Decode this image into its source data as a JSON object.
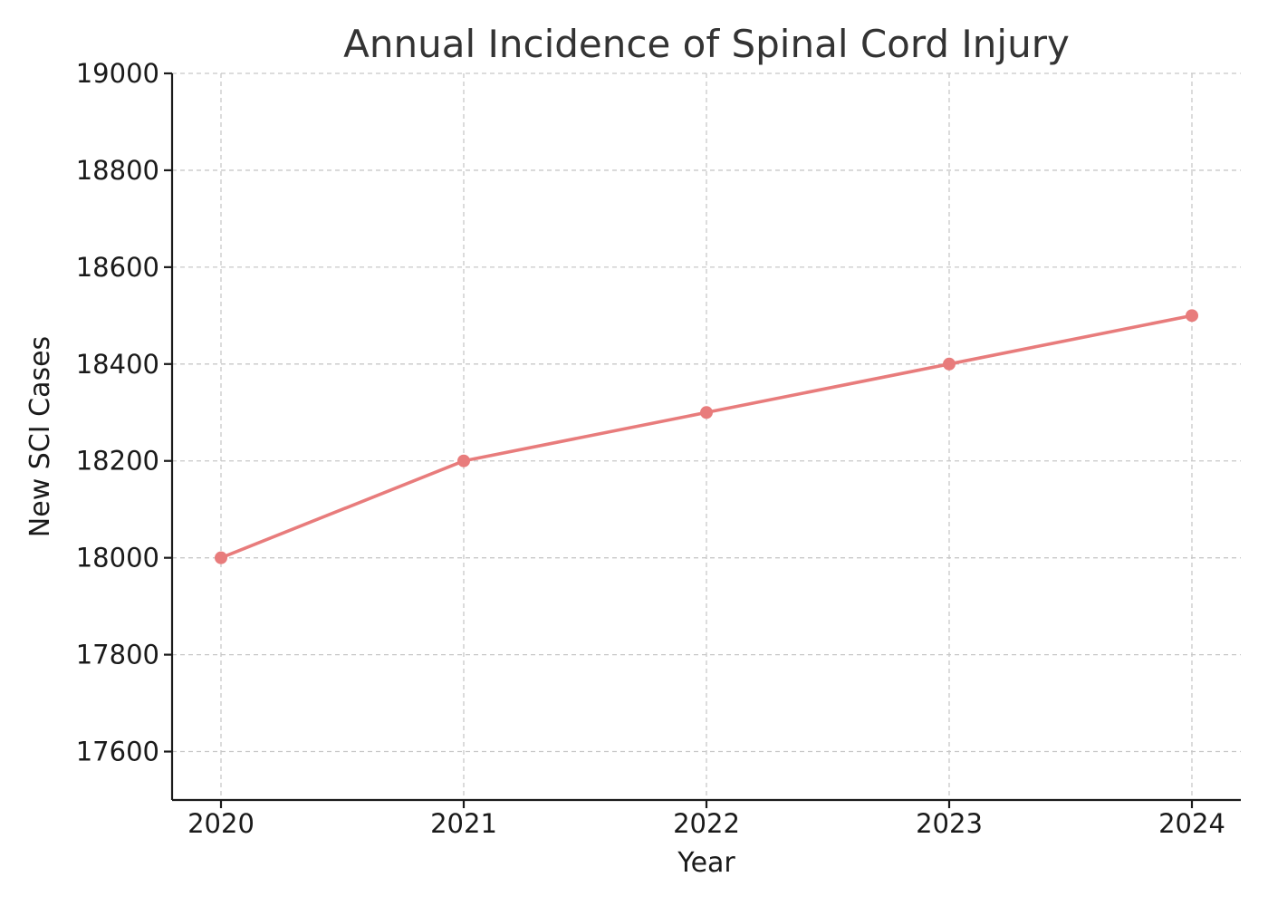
{
  "chart_data": {
    "type": "line",
    "title": "Annual Incidence of Spinal Cord Injury",
    "xlabel": "Year",
    "ylabel": "New SCI Cases",
    "categories": [
      "2020",
      "2021",
      "2022",
      "2023",
      "2024"
    ],
    "series": [
      {
        "values": [
          18000,
          18200,
          18300,
          18400,
          18500
        ],
        "color": "#e87c7c",
        "marker": "circle"
      }
    ],
    "ylim": [
      17500,
      19000
    ],
    "yticks": [
      17600,
      17800,
      18000,
      18200,
      18400,
      18600,
      18800,
      19000
    ],
    "grid": true,
    "legend": "none"
  }
}
